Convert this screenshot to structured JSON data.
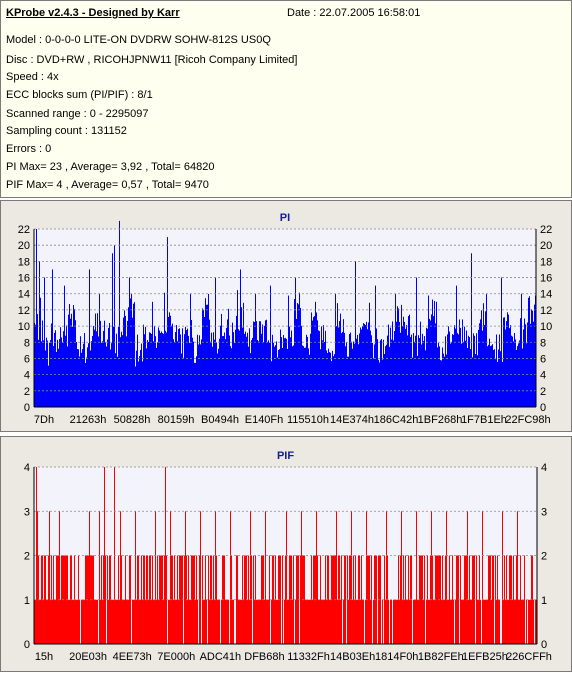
{
  "info": {
    "title": "KProbe v2.4.3 - Designed by Karr",
    "date": "Date : 22.07.2005 16:58:01",
    "lines": [
      "Model : 0-0-0-0 LITE-ON DVDRW SOHW-812S  US0Q",
      "Disc : DVD+RW , RICOHJPNW11 [Ricoh Company Limited]",
      "Speed : 4x",
      "ECC blocks sum (PI/PIF) : 8/1",
      "Scanned range : 0 - 2295097",
      "Sampling count : 131152",
      "Errors : 0",
      "PI Max= 23 , Average= 3,92 , Total= 64820",
      "PIF Max= 4 , Average= 0,57 , Total= 9470"
    ]
  },
  "chart_data": [
    {
      "type": "bar",
      "title": "PI",
      "bar_color": "#0000ff",
      "ylim": [
        0,
        22
      ],
      "yticks": [
        0,
        2,
        4,
        6,
        8,
        10,
        12,
        14,
        16,
        18,
        20,
        22
      ],
      "xtick_labels": [
        "7Dh",
        "21263h",
        "50828h",
        "80159h",
        "B0494h",
        "E140Fh",
        "115510h",
        "14E374h",
        "186C42h",
        "1BF268h",
        "1F7B1Eh",
        "22FC98h"
      ],
      "grid": true,
      "base_values": [
        10,
        7,
        8,
        9,
        11,
        8,
        7,
        10,
        9,
        8,
        10,
        12,
        7,
        9,
        8,
        11,
        10,
        8,
        9,
        7,
        12,
        8,
        10,
        9,
        11,
        8,
        9,
        10,
        7,
        8,
        9,
        12,
        8,
        10,
        9,
        7,
        11,
        8,
        9,
        10,
        8,
        7,
        9,
        11,
        10,
        8,
        9,
        12,
        7,
        8,
        10,
        9,
        8,
        11,
        9,
        7,
        10,
        8,
        9,
        12
      ],
      "peaks": [
        {
          "pos": 0.004,
          "value": 22
        },
        {
          "pos": 0.01,
          "value": 18
        },
        {
          "pos": 0.02,
          "value": 16
        },
        {
          "pos": 0.035,
          "value": 17
        },
        {
          "pos": 0.06,
          "value": 15
        },
        {
          "pos": 0.11,
          "value": 17
        },
        {
          "pos": 0.13,
          "value": 14
        },
        {
          "pos": 0.155,
          "value": 19
        },
        {
          "pos": 0.16,
          "value": 20
        },
        {
          "pos": 0.17,
          "value": 23
        },
        {
          "pos": 0.19,
          "value": 16
        },
        {
          "pos": 0.235,
          "value": 13
        },
        {
          "pos": 0.265,
          "value": 21
        },
        {
          "pos": 0.31,
          "value": 14
        },
        {
          "pos": 0.36,
          "value": 16
        },
        {
          "pos": 0.41,
          "value": 17
        },
        {
          "pos": 0.44,
          "value": 14
        },
        {
          "pos": 0.47,
          "value": 15
        },
        {
          "pos": 0.52,
          "value": 16
        },
        {
          "pos": 0.56,
          "value": 13
        },
        {
          "pos": 0.6,
          "value": 14
        },
        {
          "pos": 0.64,
          "value": 18
        },
        {
          "pos": 0.68,
          "value": 15
        },
        {
          "pos": 0.72,
          "value": 14
        },
        {
          "pos": 0.76,
          "value": 16
        },
        {
          "pos": 0.8,
          "value": 13
        },
        {
          "pos": 0.84,
          "value": 15
        },
        {
          "pos": 0.87,
          "value": 19
        },
        {
          "pos": 0.9,
          "value": 14
        },
        {
          "pos": 0.93,
          "value": 16
        },
        {
          "pos": 0.97,
          "value": 14
        }
      ]
    },
    {
      "type": "bar",
      "title": "PIF",
      "bar_color": "#ff0000",
      "ylim": [
        0,
        4
      ],
      "yticks": [
        0,
        1,
        2,
        3,
        4
      ],
      "xtick_labels": [
        "15h",
        "20E03h",
        "4EE73h",
        "7E000h",
        "ADC41h",
        "DFB68h",
        "11332Fh",
        "14B03Eh",
        "1814F0h",
        "1B82FEh",
        "1EFB25h",
        "226CFFh"
      ],
      "grid": true,
      "pattern": [
        1,
        2,
        1,
        2,
        2,
        1,
        2,
        1,
        2,
        2,
        1,
        2,
        1,
        1,
        2,
        2,
        1,
        2,
        1,
        2,
        2,
        1,
        1,
        2,
        1,
        2,
        2,
        1,
        2,
        1
      ],
      "threes": [
        0.005,
        0.03,
        0.05,
        0.11,
        0.13,
        0.16,
        0.17,
        0.2,
        0.24,
        0.27,
        0.3,
        0.33,
        0.36,
        0.39,
        0.43,
        0.46,
        0.5,
        0.53,
        0.56,
        0.6,
        0.63,
        0.66,
        0.7,
        0.73,
        0.76,
        0.79,
        0.82,
        0.86,
        0.89,
        0.93,
        0.96
      ],
      "fours": [
        0.003,
        0.14,
        0.16,
        0.26
      ]
    }
  ]
}
